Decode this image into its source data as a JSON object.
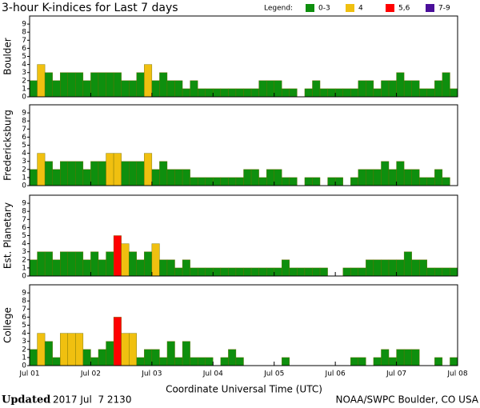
{
  "header": {
    "title": "3-hour K-indices for Last 7 days",
    "legend_title": "Legend:",
    "legend": [
      {
        "name": "0-3",
        "color": "#0e8f0e"
      },
      {
        "name": "4",
        "color": "#f0c010"
      },
      {
        "name": "5,6",
        "color": "#ff0000"
      },
      {
        "name": "7-9",
        "color": "#4b0f9a"
      }
    ]
  },
  "x_axis": {
    "ticks": [
      "Jul 01",
      "Jul 02",
      "Jul 03",
      "Jul 04",
      "Jul 05",
      "Jul 06",
      "Jul 07",
      "Jul 08"
    ],
    "title": "Coordinate Universal Time (UTC)"
  },
  "footer": {
    "updated_label": "Updated",
    "updated": "2017 Jul  7 2130",
    "source": "NOAA/SWPC Boulder, CO USA"
  },
  "chart_data": [
    {
      "type": "bar",
      "ylabel": "Boulder",
      "ylim": [
        0,
        10
      ],
      "yticks": [
        0,
        1,
        2,
        3,
        4,
        5,
        6,
        7,
        8,
        9
      ],
      "values": [
        2,
        4,
        3,
        2,
        3,
        3,
        3,
        2,
        3,
        3,
        3,
        3,
        2,
        2,
        3,
        4,
        2,
        3,
        2,
        2,
        1,
        2,
        1,
        1,
        1,
        1,
        1,
        1,
        1,
        1,
        2,
        2,
        2,
        1,
        1,
        0,
        1,
        2,
        1,
        1,
        1,
        1,
        1,
        2,
        2,
        1,
        2,
        2,
        3,
        2,
        2,
        1,
        1,
        2,
        3,
        1
      ]
    },
    {
      "type": "bar",
      "ylabel": "Fredericksburg",
      "ylim": [
        0,
        10
      ],
      "yticks": [
        0,
        1,
        2,
        3,
        4,
        5,
        6,
        7,
        8,
        9
      ],
      "values": [
        2,
        4,
        3,
        2,
        3,
        3,
        3,
        2,
        3,
        3,
        4,
        4,
        3,
        3,
        3,
        4,
        2,
        3,
        2,
        2,
        2,
        1,
        1,
        1,
        1,
        1,
        1,
        1,
        2,
        2,
        1,
        2,
        2,
        1,
        1,
        0,
        1,
        1,
        0,
        1,
        1,
        0,
        1,
        2,
        2,
        2,
        3,
        2,
        3,
        2,
        2,
        1,
        1,
        2,
        1,
        0
      ]
    },
    {
      "type": "bar",
      "ylabel": "Est. Planetary",
      "ylim": [
        0,
        10
      ],
      "yticks": [
        0,
        1,
        2,
        3,
        4,
        5,
        6,
        7,
        8,
        9
      ],
      "values": [
        2,
        3,
        3,
        2,
        3,
        3,
        3,
        2,
        3,
        2,
        3,
        5,
        4,
        3,
        2,
        3,
        4,
        2,
        2,
        1,
        2,
        1,
        1,
        1,
        1,
        1,
        1,
        1,
        1,
        1,
        1,
        1,
        1,
        2,
        1,
        1,
        1,
        1,
        1,
        0,
        0,
        1,
        1,
        1,
        2,
        2,
        2,
        2,
        2,
        3,
        2,
        2,
        1,
        1,
        1,
        1
      ]
    },
    {
      "type": "bar",
      "ylabel": "College",
      "ylim": [
        0,
        10
      ],
      "yticks": [
        0,
        1,
        2,
        3,
        4,
        5,
        6,
        7,
        8,
        9
      ],
      "values": [
        2,
        4,
        3,
        1,
        4,
        4,
        4,
        2,
        1,
        2,
        3,
        6,
        4,
        4,
        1,
        2,
        2,
        1,
        3,
        1,
        3,
        1,
        1,
        1,
        0,
        1,
        2,
        1,
        0,
        0,
        0,
        0,
        0,
        1,
        0,
        0,
        0,
        0,
        0,
        0,
        0,
        0,
        1,
        1,
        0,
        1,
        2,
        1,
        2,
        2,
        2,
        0,
        0,
        1,
        0,
        1
      ]
    }
  ]
}
